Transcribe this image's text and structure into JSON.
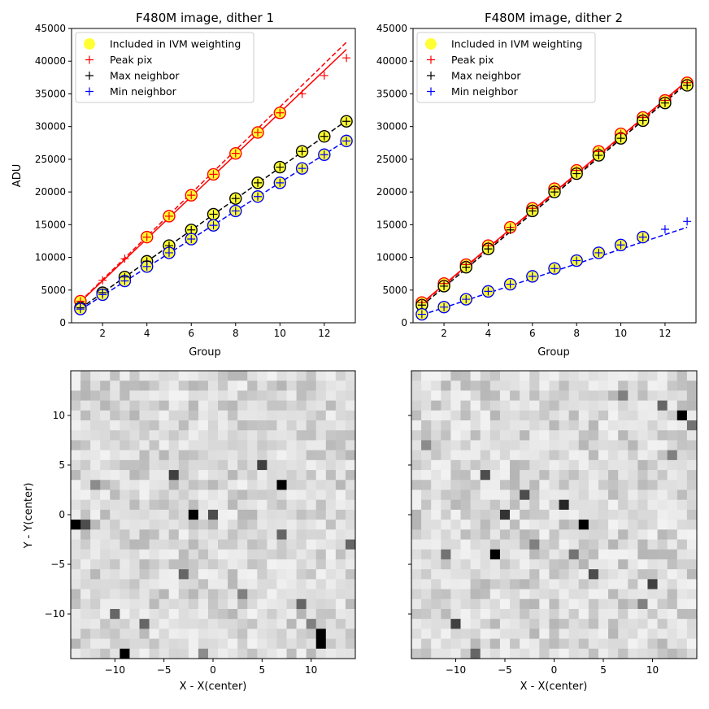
{
  "chart_data": [
    {
      "type": "scatter",
      "title": "F480M image, dither 1",
      "xlabel": "Group",
      "ylabel": "ADU",
      "xlim": [
        0.6,
        13.4
      ],
      "ylim": [
        0,
        45000
      ],
      "xticks": [
        2,
        4,
        6,
        8,
        10,
        12
      ],
      "yticks": [
        0,
        5000,
        10000,
        15000,
        20000,
        25000,
        30000,
        35000,
        40000,
        45000
      ],
      "legend": {
        "position": "top-left",
        "entries": [
          "Included in IVM weighting",
          "Peak pix",
          "Max neighbor",
          "Min neighbor"
        ]
      },
      "series": [
        {
          "name": "Peak pix",
          "color": "#ff0000",
          "x": [
            1,
            2,
            3,
            4,
            5,
            6,
            7,
            8,
            9,
            10,
            11,
            12,
            13
          ],
          "values": [
            3300,
            6500,
            9800,
            13100,
            16300,
            19500,
            22700,
            25900,
            29100,
            32100,
            35000,
            37800,
            40500
          ],
          "included_groups": [
            1,
            4,
            5,
            6,
            7,
            8,
            9,
            10
          ],
          "fit_solid": [
            [
              1,
              3200
            ],
            [
              13,
              41800
            ]
          ],
          "fit_dashed": [
            [
              1,
              3300
            ],
            [
              13,
              42900
            ]
          ]
        },
        {
          "name": "Max neighbor",
          "color": "#000000",
          "x": [
            1,
            2,
            3,
            4,
            5,
            6,
            7,
            8,
            9,
            10,
            11,
            12,
            13
          ],
          "values": [
            2300,
            4600,
            7000,
            9400,
            11800,
            14200,
            16600,
            19000,
            21400,
            23800,
            26200,
            28500,
            30800
          ],
          "included_groups": [
            1,
            2,
            3,
            4,
            5,
            6,
            7,
            8,
            9,
            10,
            11,
            12,
            13
          ],
          "fit_dashed": [
            [
              1,
              2200
            ],
            [
              13,
              30900
            ]
          ]
        },
        {
          "name": "Min neighbor",
          "color": "#0000ff",
          "x": [
            1,
            2,
            3,
            4,
            5,
            6,
            7,
            8,
            9,
            10,
            11,
            12,
            13
          ],
          "values": [
            2100,
            4300,
            6400,
            8600,
            10700,
            12800,
            14900,
            17100,
            19300,
            21400,
            23600,
            25700,
            27800
          ],
          "included_groups": [
            1,
            2,
            3,
            4,
            5,
            6,
            7,
            8,
            9,
            10,
            11,
            12,
            13
          ],
          "fit_dashed": [
            [
              1,
              2000
            ],
            [
              13,
              27900
            ]
          ]
        }
      ]
    },
    {
      "type": "scatter",
      "title": "F480M image, dither 2",
      "xlabel": "Group",
      "ylabel": "",
      "xlim": [
        0.6,
        13.4
      ],
      "ylim": [
        0,
        45000
      ],
      "xticks": [
        2,
        4,
        6,
        8,
        10,
        12
      ],
      "yticks": [
        0,
        5000,
        10000,
        15000,
        20000,
        25000,
        30000,
        35000,
        40000,
        45000
      ],
      "legend": {
        "position": "top-left",
        "entries": [
          "Included in IVM weighting",
          "Peak pix",
          "Max neighbor",
          "Min neighbor"
        ]
      },
      "series": [
        {
          "name": "Peak pix",
          "color": "#ff0000",
          "x": [
            1,
            2,
            3,
            4,
            5,
            6,
            7,
            8,
            9,
            10,
            11,
            12,
            13
          ],
          "values": [
            3100,
            6000,
            8900,
            11800,
            14600,
            17500,
            20500,
            23300,
            26200,
            28900,
            31400,
            34000,
            36700
          ],
          "included_groups": [
            1,
            2,
            3,
            4,
            5,
            6,
            7,
            8,
            9,
            10,
            11,
            12,
            13
          ],
          "fit_solid": [
            [
              1,
              3000
            ],
            [
              13,
              37000
            ]
          ],
          "fit_dashed": [
            [
              1,
              2900
            ],
            [
              13,
              36800
            ]
          ]
        },
        {
          "name": "Max neighbor",
          "color": "#000000",
          "x": [
            1,
            2,
            3,
            4,
            5,
            6,
            7,
            8,
            9,
            10,
            11,
            12,
            13
          ],
          "values": [
            2700,
            5600,
            8500,
            11300,
            14200,
            17100,
            20000,
            22800,
            25600,
            28200,
            30900,
            33600,
            36300
          ],
          "included_groups": [
            1,
            2,
            3,
            4,
            6,
            7,
            8,
            9,
            10,
            11,
            12,
            13
          ],
          "fit_dashed": [
            [
              1,
              2600
            ],
            [
              13,
              36600
            ]
          ]
        },
        {
          "name": "Min neighbor",
          "color": "#0000ff",
          "x": [
            1,
            2,
            3,
            4,
            5,
            6,
            7,
            8,
            9,
            10,
            11,
            12,
            13
          ],
          "values": [
            1300,
            2400,
            3600,
            4800,
            5900,
            7100,
            8300,
            9500,
            10700,
            11900,
            13100,
            14300,
            15500
          ],
          "included_groups": [
            1,
            2,
            3,
            4,
            5,
            6,
            7,
            8,
            9,
            10,
            11
          ],
          "fit_dashed": [
            [
              1,
              1200
            ],
            [
              13,
              14600
            ]
          ]
        }
      ]
    },
    {
      "type": "heatmap",
      "title": "",
      "xlabel": "X - X(center)",
      "ylabel": "Y - Y(center)",
      "xlim": [
        -14.5,
        14.5
      ],
      "ylim": [
        -14.5,
        14.5
      ],
      "xticks": [
        -10,
        -5,
        0,
        5,
        10
      ],
      "yticks": [
        -10,
        -5,
        0,
        5,
        10
      ],
      "colormap": "gray_r",
      "seed": 7,
      "dark_cells": [
        [
          -2,
          0,
          1.0
        ],
        [
          7,
          3,
          1.0
        ],
        [
          -14,
          -1,
          1.0
        ],
        [
          -13,
          -1,
          0.7
        ],
        [
          0,
          0,
          0.7
        ],
        [
          -4,
          4,
          0.75
        ],
        [
          5,
          5,
          0.75
        ],
        [
          -9,
          -14,
          1.0
        ],
        [
          11,
          -12,
          1.0
        ],
        [
          11,
          -13,
          1.0
        ],
        [
          -10,
          -10,
          0.6
        ],
        [
          -7,
          -11,
          0.6
        ],
        [
          -3,
          -6,
          0.6
        ],
        [
          9,
          -9,
          0.6
        ],
        [
          14,
          -3,
          0.6
        ],
        [
          7,
          -2,
          0.6
        ],
        [
          -12,
          3,
          0.45
        ],
        [
          10,
          -11,
          0.5
        ],
        [
          3,
          -8,
          0.5
        ],
        [
          -1,
          -14,
          0.45
        ]
      ]
    },
    {
      "type": "heatmap",
      "title": "",
      "xlabel": "X - X(center)",
      "ylabel": "",
      "xlim": [
        -14.5,
        14.5
      ],
      "ylim": [
        -14.5,
        14.5
      ],
      "xticks": [
        -10,
        -5,
        0,
        5,
        10
      ],
      "yticks": [
        -10,
        -5,
        0,
        5,
        10
      ],
      "colormap": "gray_r",
      "seed": 13,
      "dark_cells": [
        [
          13,
          10,
          1.0
        ],
        [
          -6,
          -4,
          1.0
        ],
        [
          3,
          -1,
          1.0
        ],
        [
          1,
          1,
          0.85
        ],
        [
          -5,
          0,
          0.8
        ],
        [
          -7,
          4,
          0.7
        ],
        [
          -3,
          2,
          0.7
        ],
        [
          10,
          -7,
          0.75
        ],
        [
          -10,
          -11,
          0.75
        ],
        [
          4,
          -6,
          0.7
        ],
        [
          -8,
          -14,
          0.6
        ],
        [
          11,
          11,
          0.6
        ],
        [
          14,
          9,
          0.55
        ],
        [
          -11,
          -4,
          0.55
        ],
        [
          2,
          -4,
          0.55
        ],
        [
          12,
          6,
          0.5
        ],
        [
          -2,
          -3,
          0.5
        ],
        [
          9,
          -9,
          0.5
        ],
        [
          7,
          12,
          0.5
        ],
        [
          -13,
          7,
          0.45
        ]
      ]
    }
  ]
}
